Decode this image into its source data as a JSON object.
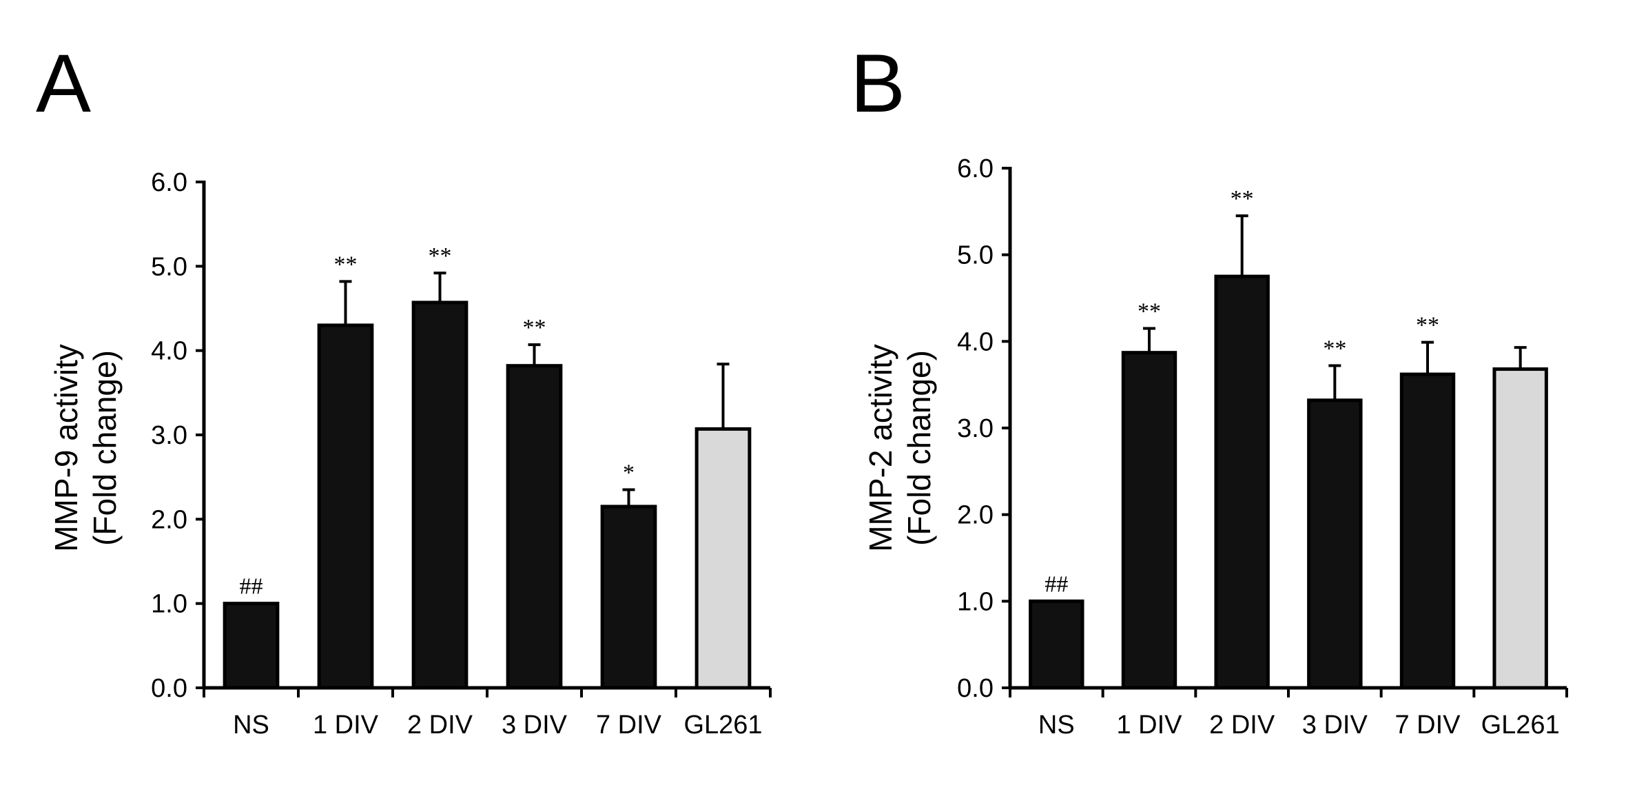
{
  "chart_data": [
    {
      "type": "bar",
      "panel": "A",
      "ylabel_line1": "MMP-9 activity",
      "ylabel_line2": "(Fold change)",
      "categories": [
        "NS",
        "1 DIV",
        "2 DIV",
        "3 DIV",
        "7 DIV",
        "GL261"
      ],
      "values": [
        1.0,
        4.3,
        4.57,
        3.82,
        2.15,
        3.07
      ],
      "errors": [
        0.0,
        0.52,
        0.35,
        0.25,
        0.2,
        0.77
      ],
      "annotations": [
        "##",
        "**",
        "**",
        "**",
        "*",
        ""
      ],
      "bar_colors": [
        "#111111",
        "#111111",
        "#111111",
        "#111111",
        "#111111",
        "#d9d9d9"
      ],
      "yticks": [
        "0.0",
        "1.0",
        "2.0",
        "3.0",
        "4.0",
        "5.0",
        "6.0"
      ],
      "ylim": [
        0,
        6
      ],
      "grid": false
    },
    {
      "type": "bar",
      "panel": "B",
      "ylabel_line1": "MMP-2 activity",
      "ylabel_line2": "(Fold change)",
      "categories": [
        "NS",
        "1 DIV",
        "2 DIV",
        "3 DIV",
        "7 DIV",
        "GL261"
      ],
      "values": [
        1.0,
        3.87,
        4.75,
        3.32,
        3.62,
        3.68
      ],
      "errors": [
        0.0,
        0.28,
        0.7,
        0.4,
        0.37,
        0.25
      ],
      "annotations": [
        "##",
        "**",
        "**",
        "**",
        "**",
        ""
      ],
      "bar_colors": [
        "#111111",
        "#111111",
        "#111111",
        "#111111",
        "#111111",
        "#d9d9d9"
      ],
      "yticks": [
        "0.0",
        "1.0",
        "2.0",
        "3.0",
        "4.0",
        "5.0",
        "6.0"
      ],
      "ylim": [
        0,
        6
      ],
      "grid": false
    }
  ]
}
